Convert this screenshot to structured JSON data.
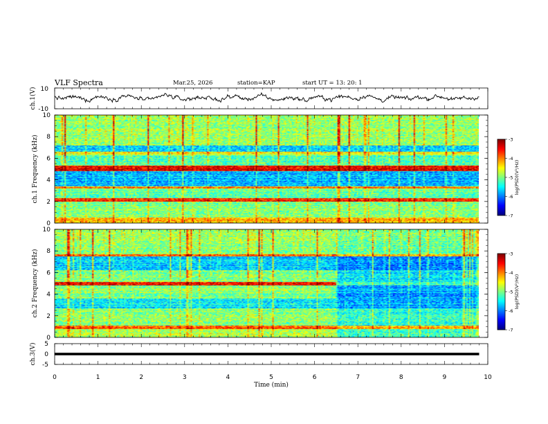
{
  "header": {
    "title": "VLF Spectra",
    "date": "Mar.25, 2026",
    "station": "station=KAP",
    "start_ut": "start UT =  13: 20: 1"
  },
  "colors": {
    "background": "#ffffff",
    "axis": "#000000",
    "waveform": "#000000",
    "spectrogram_low": "#00008f",
    "spectrogram_high": "#800000"
  },
  "chart_data": [
    {
      "id": "ch1-waveform",
      "type": "line",
      "ylabel": "ch.1(V)",
      "ylim": [
        -10,
        10
      ],
      "y_ticks": [
        "10",
        "-10"
      ],
      "x_range_min": [
        0,
        10
      ],
      "data_extent_min": [
        0,
        9.8
      ],
      "description_values": "noisy voltage trace oscillating mostly between about -5 and +5 V",
      "sample_values": [
        2,
        -1,
        3,
        0,
        -3,
        4,
        1,
        -2,
        5,
        2,
        -1,
        -4,
        3,
        6,
        1,
        -2,
        0,
        3,
        -1,
        -3,
        2,
        4,
        -2,
        1,
        5,
        -1,
        -3,
        2,
        0,
        -4,
        3,
        1,
        -2,
        4,
        2,
        -1,
        6,
        0,
        -3,
        2,
        1,
        -2,
        3,
        -1,
        4,
        2,
        -3,
        1,
        0,
        3
      ]
    },
    {
      "id": "ch1-spectrogram",
      "type": "heatmap",
      "ylabel": "ch.1 Frequency (kHz)",
      "ylim": [
        0,
        10
      ],
      "y_ticks": [
        "0",
        "2",
        "4",
        "6",
        "8",
        "10"
      ],
      "x_range_min": [
        0,
        10
      ],
      "data_extent_min": [
        0,
        9.8
      ],
      "colorbar": {
        "label": "log(PSD)(V²/Hz)",
        "range": [
          -7,
          -3
        ],
        "ticks": [
          "-3",
          "-4",
          "-5",
          "-6",
          "-7"
        ]
      },
      "bands_khz": [
        {
          "lo": 0,
          "hi": 0.5,
          "level": -4.2
        },
        {
          "lo": 0.5,
          "hi": 2.0,
          "level": -5.0
        },
        {
          "lo": 2.0,
          "hi": 2.3,
          "level": -3.6
        },
        {
          "lo": 2.3,
          "hi": 3.2,
          "level": -5.1
        },
        {
          "lo": 3.2,
          "hi": 3.4,
          "level": -4.1
        },
        {
          "lo": 3.4,
          "hi": 4.8,
          "level": -5.8
        },
        {
          "lo": 4.8,
          "hi": 5.3,
          "level": -3.5
        },
        {
          "lo": 5.3,
          "hi": 6.3,
          "level": -5.2
        },
        {
          "lo": 6.3,
          "hi": 6.6,
          "level": -4.6
        },
        {
          "lo": 6.6,
          "hi": 7.2,
          "level": -5.7
        },
        {
          "lo": 7.2,
          "hi": 10.0,
          "level": -4.9
        }
      ]
    },
    {
      "id": "ch2-spectrogram",
      "type": "heatmap",
      "ylabel": "ch.2 Frequency (kHz)",
      "ylim": [
        0,
        10
      ],
      "y_ticks": [
        "0",
        "2",
        "4",
        "6",
        "8",
        "10"
      ],
      "x_range_min": [
        0,
        10
      ],
      "data_extent_min": [
        0,
        9.8
      ],
      "regime_change_min": 6.5,
      "colorbar": {
        "label": "log(PSD)(V²/Hz)",
        "range": [
          -7,
          -3
        ],
        "ticks": [
          "-3",
          "-4",
          "-5",
          "-6",
          "-7"
        ]
      },
      "bands_khz": [
        {
          "lo": 0,
          "hi": 0.8,
          "level": -4.8,
          "level_after": -5.3
        },
        {
          "lo": 0.8,
          "hi": 1.1,
          "level": -3.8,
          "level_after": -4.2
        },
        {
          "lo": 1.1,
          "hi": 2.7,
          "level": -5.0,
          "level_after": -5.4
        },
        {
          "lo": 2.7,
          "hi": 3.6,
          "level": -5.6,
          "level_after": -5.9
        },
        {
          "lo": 3.6,
          "hi": 4.8,
          "level": -5.0,
          "level_after": -5.9
        },
        {
          "lo": 4.8,
          "hi": 5.1,
          "level": -3.6,
          "level_after": -5.3
        },
        {
          "lo": 5.1,
          "hi": 6.2,
          "level": -5.0,
          "level_after": -5.6
        },
        {
          "lo": 6.2,
          "hi": 7.5,
          "level": -5.7,
          "level_after": -6.0
        },
        {
          "lo": 7.5,
          "hi": 7.7,
          "level": -3.9,
          "level_after": -4.3
        },
        {
          "lo": 7.7,
          "hi": 10.0,
          "level": -4.9,
          "level_after": -5.1
        }
      ]
    },
    {
      "id": "ch3-waveform",
      "type": "line",
      "ylabel": "ch.3(V)",
      "ylim": [
        -5,
        5
      ],
      "y_ticks": [
        "5",
        "0",
        "-5"
      ],
      "x_range_min": [
        0,
        10
      ],
      "data_extent_min": [
        0,
        9.8
      ],
      "description_values": "dense signal near 0 V filling roughly -0.6 to +0.6 V"
    }
  ],
  "x_axis": {
    "label": "Time (min)",
    "ticks": [
      "0",
      "1",
      "2",
      "3",
      "4",
      "5",
      "6",
      "7",
      "8",
      "9",
      "10"
    ]
  }
}
